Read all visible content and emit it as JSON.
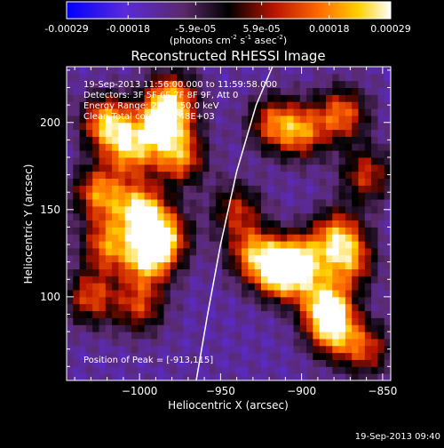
{
  "colorbar": {
    "tick_labels": [
      "-0.00029",
      "-0.00018",
      "-5.9e-05",
      "5.9e-05",
      "0.00018",
      "0.00029"
    ],
    "tick_values": [
      -0.00029,
      -0.00018,
      -5.9e-05,
      5.9e-05,
      0.00018,
      0.00029
    ],
    "range": [
      -0.00029,
      0.00029
    ],
    "unit_main": "(photons cm",
    "unit_sup1": "-2",
    "unit_mid": " s",
    "unit_sup2": "-1",
    "unit_end": " asec",
    "unit_sup3": "-2",
    "unit_close": ")"
  },
  "chart_data": {
    "type": "heatmap",
    "title": "Reconstructed RHESSI Image",
    "xlabel": "Heliocentric X (arcsec)",
    "ylabel": "Heliocentric Y (arcsec)",
    "xlim": [
      -1045,
      -845
    ],
    "ylim": [
      52,
      232
    ],
    "x_ticks": [
      -1000,
      -950,
      -900,
      -850
    ],
    "x_tick_labels": [
      "−1000",
      "−950",
      "−900",
      "−850"
    ],
    "y_ticks": [
      100,
      150,
      200
    ],
    "y_tick_labels": [
      "100",
      "150",
      "200"
    ],
    "annotations": [
      "19-Sep-2013 11:56:00.000 to 11:59:58.000",
      "Detectors: 3F 5F 6F 7F 8F 9F, Att 0",
      "Energy Range: 25.0 - 50.0 keV",
      "Clean     Total counts: 6.48E+03"
    ],
    "peak_label": "Position of Peak = [-913,115]",
    "peak": [
      -913,
      115
    ],
    "limb_curve": [
      [
        -965,
        52
      ],
      [
        -958,
        90
      ],
      [
        -950,
        130
      ],
      [
        -940,
        172
      ],
      [
        -928,
        210
      ],
      [
        -918,
        232
      ]
    ],
    "sources": [
      {
        "x": -1020,
        "y": 200,
        "value": 0.00022
      },
      {
        "x": -1005,
        "y": 185,
        "value": 0.00018
      },
      {
        "x": -985,
        "y": 200,
        "value": 0.00025
      },
      {
        "x": -975,
        "y": 180,
        "value": 0.00016
      },
      {
        "x": -1025,
        "y": 160,
        "value": 0.00017
      },
      {
        "x": -1000,
        "y": 150,
        "value": 0.00024
      },
      {
        "x": -985,
        "y": 135,
        "value": 0.0002
      },
      {
        "x": -1020,
        "y": 130,
        "value": 0.00015
      },
      {
        "x": -995,
        "y": 122,
        "value": 0.00021
      },
      {
        "x": -1030,
        "y": 100,
        "value": 0.00012
      },
      {
        "x": -1000,
        "y": 95,
        "value": 0.0001
      },
      {
        "x": -980,
        "y": 215,
        "value": 0.00014
      },
      {
        "x": -913,
        "y": 115,
        "value": 0.00029
      },
      {
        "x": -900,
        "y": 120,
        "value": 0.00018
      },
      {
        "x": -930,
        "y": 125,
        "value": 0.00015
      },
      {
        "x": -878,
        "y": 135,
        "value": 0.00017
      },
      {
        "x": -870,
        "y": 120,
        "value": 0.00012
      },
      {
        "x": -885,
        "y": 95,
        "value": 0.00025
      },
      {
        "x": -880,
        "y": 80,
        "value": 0.00016
      },
      {
        "x": -900,
        "y": 195,
        "value": 0.00014
      },
      {
        "x": -875,
        "y": 205,
        "value": 0.00015
      },
      {
        "x": -918,
        "y": 200,
        "value": 0.00011
      },
      {
        "x": -860,
        "y": 170,
        "value": 0.0001
      },
      {
        "x": -940,
        "y": 150,
        "value": 8e-05
      },
      {
        "x": -860,
        "y": 70,
        "value": 9e-05
      }
    ],
    "grid": false
  },
  "timestamp": "19-Sep-2013 09:40"
}
